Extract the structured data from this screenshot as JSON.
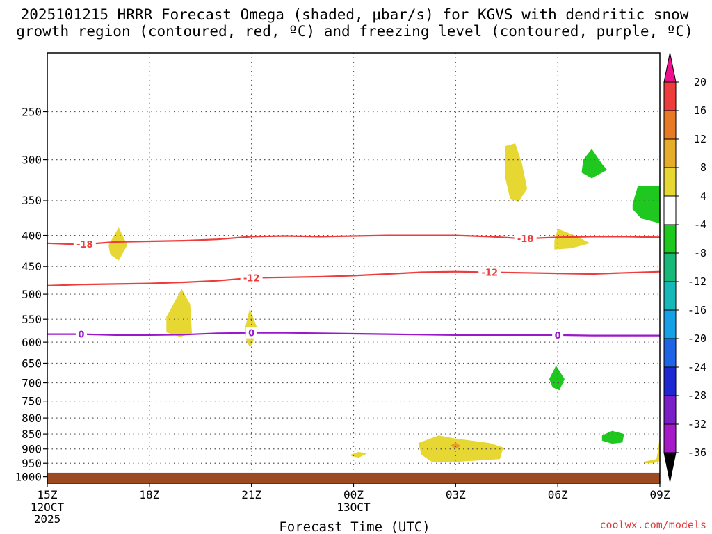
{
  "chart_data": {
    "type": "heatmap",
    "title_lines": [
      "2025101215 HRRR Forecast Omega (shaded, μbar/s) for KGVS with dendritic snow",
      "growth region (contoured, red, ºC) and freezing level (contoured, purple, ºC)"
    ],
    "xlabel": "Forecast Time (UTC)",
    "credit": "coolwx.com/models",
    "x_ticks": [
      {
        "hour": 0,
        "label": "15Z",
        "sub": [
          "12OCT",
          "2025"
        ]
      },
      {
        "hour": 3,
        "label": "18Z",
        "sub": []
      },
      {
        "hour": 6,
        "label": "21Z",
        "sub": []
      },
      {
        "hour": 9,
        "label": "00Z",
        "sub": [
          "13OCT"
        ]
      },
      {
        "hour": 12,
        "label": "03Z",
        "sub": []
      },
      {
        "hour": 15,
        "label": "06Z",
        "sub": []
      },
      {
        "hour": 18,
        "label": "09Z",
        "sub": []
      }
    ],
    "x_range_hours": [
      0,
      18
    ],
    "y_range_hpa": [
      200,
      1025
    ],
    "y_ticks": [
      250,
      300,
      350,
      400,
      450,
      500,
      550,
      600,
      650,
      700,
      750,
      800,
      850,
      900,
      950,
      1000
    ],
    "ground": {
      "top_hpa": 985,
      "color": "#9b4a22"
    },
    "contours": [
      {
        "name": "dgz-minus18",
        "value": -18,
        "label": "-18",
        "color": "#ee3b3b",
        "points": [
          [
            0,
            412
          ],
          [
            1,
            414
          ],
          [
            2,
            410
          ],
          [
            3,
            409
          ],
          [
            4,
            408
          ],
          [
            5,
            406
          ],
          [
            6,
            402
          ],
          [
            7,
            401
          ],
          [
            8,
            402
          ],
          [
            9,
            401
          ],
          [
            10,
            400
          ],
          [
            11,
            400
          ],
          [
            12,
            400
          ],
          [
            13,
            402
          ],
          [
            14,
            405
          ],
          [
            15,
            403
          ],
          [
            16,
            402
          ],
          [
            17,
            402
          ],
          [
            18,
            403
          ]
        ],
        "label_hours": [
          1.1,
          14.05
        ]
      },
      {
        "name": "dgz-minus12",
        "value": -12,
        "label": "-12",
        "color": "#ee3b3b",
        "points": [
          [
            0,
            484
          ],
          [
            1,
            482
          ],
          [
            2,
            481
          ],
          [
            3,
            480
          ],
          [
            4,
            478
          ],
          [
            5,
            475
          ],
          [
            6,
            470
          ],
          [
            7,
            469
          ],
          [
            8,
            468
          ],
          [
            9,
            466
          ],
          [
            10,
            463
          ],
          [
            11,
            460
          ],
          [
            12,
            459
          ],
          [
            13,
            460
          ],
          [
            14,
            461
          ],
          [
            15,
            462
          ],
          [
            16,
            463
          ],
          [
            17,
            461
          ],
          [
            18,
            459
          ]
        ],
        "label_hours": [
          6.0,
          13.0
        ]
      },
      {
        "name": "freezing-level",
        "value": 0,
        "label": "0",
        "color": "#9a18c8",
        "points": [
          [
            0,
            582
          ],
          [
            1,
            582
          ],
          [
            2,
            584
          ],
          [
            3,
            584
          ],
          [
            4,
            583
          ],
          [
            5,
            580
          ],
          [
            6,
            579
          ],
          [
            7,
            579
          ],
          [
            8,
            580
          ],
          [
            9,
            581
          ],
          [
            10,
            582
          ],
          [
            11,
            583
          ],
          [
            12,
            584
          ],
          [
            13,
            584
          ],
          [
            14,
            584
          ],
          [
            15,
            584
          ],
          [
            16,
            585
          ],
          [
            17,
            585
          ],
          [
            18,
            585
          ]
        ],
        "label_hours": [
          1.0,
          6.0,
          15.0
        ]
      }
    ],
    "regions": [
      {
        "name": "omega-blob-upper-yellow",
        "range": "4 to 8",
        "color": "#e6d733",
        "points": [
          [
            13.45,
            285
          ],
          [
            13.75,
            282
          ],
          [
            13.95,
            305
          ],
          [
            14.1,
            335
          ],
          [
            13.85,
            352
          ],
          [
            13.6,
            348
          ],
          [
            13.45,
            320
          ]
        ]
      },
      {
        "name": "omega-blob-upper-green",
        "range": "-4 to -8",
        "color": "#1ec81e",
        "points": [
          [
            15.75,
            300
          ],
          [
            16.0,
            288
          ],
          [
            16.3,
            305
          ],
          [
            16.45,
            312
          ],
          [
            16.0,
            322
          ],
          [
            15.7,
            315
          ]
        ]
      },
      {
        "name": "omega-blob-right-green",
        "range": "-4 to -8",
        "color": "#1ec81e",
        "points": [
          [
            17.2,
            355
          ],
          [
            17.35,
            332
          ],
          [
            18.0,
            332
          ],
          [
            18.0,
            382
          ],
          [
            17.45,
            375
          ],
          [
            17.2,
            362
          ]
        ]
      },
      {
        "name": "omega-blob-near-18-left",
        "range": "4 to 8",
        "color": "#e6d733",
        "points": [
          [
            1.8,
            415
          ],
          [
            2.1,
            388
          ],
          [
            2.35,
            415
          ],
          [
            2.1,
            440
          ],
          [
            1.85,
            430
          ]
        ]
      },
      {
        "name": "omega-blob-near-18-right",
        "range": "4 to 8",
        "color": "#e6d733",
        "points": [
          [
            14.9,
            408
          ],
          [
            15.0,
            390
          ],
          [
            15.5,
            400
          ],
          [
            15.95,
            412
          ],
          [
            15.4,
            420
          ],
          [
            14.9,
            422
          ]
        ]
      },
      {
        "name": "omega-blob-mid-left",
        "range": "4 to 8",
        "color": "#e6d733",
        "points": [
          [
            3.5,
            545
          ],
          [
            3.95,
            490
          ],
          [
            4.2,
            520
          ],
          [
            4.25,
            580
          ],
          [
            3.9,
            588
          ],
          [
            3.5,
            578
          ]
        ]
      },
      {
        "name": "omega-blob-mid-21z",
        "range": "4 to 8",
        "color": "#e6d733",
        "points": [
          [
            5.8,
            572
          ],
          [
            5.95,
            528
          ],
          [
            6.15,
            565
          ],
          [
            6.05,
            600
          ],
          [
            5.95,
            612
          ],
          [
            5.85,
            595
          ]
        ]
      },
      {
        "name": "omega-blob-low-green",
        "range": "-4 to -8",
        "color": "#1ec81e",
        "points": [
          [
            14.75,
            690
          ],
          [
            14.95,
            656
          ],
          [
            15.2,
            690
          ],
          [
            15.05,
            720
          ],
          [
            14.85,
            712
          ]
        ]
      },
      {
        "name": "omega-blob-lower-green",
        "range": "-4 to -8",
        "color": "#1ec81e",
        "points": [
          [
            16.3,
            855
          ],
          [
            16.6,
            840
          ],
          [
            16.95,
            850
          ],
          [
            16.9,
            878
          ],
          [
            16.6,
            882
          ],
          [
            16.3,
            872
          ]
        ]
      },
      {
        "name": "omega-blob-lower-yellow-left",
        "range": "4 to 8",
        "color": "#e6d733",
        "points": [
          [
            8.9,
            920
          ],
          [
            9.15,
            910
          ],
          [
            9.4,
            915
          ],
          [
            9.15,
            930
          ],
          [
            8.95,
            925
          ]
        ]
      },
      {
        "name": "omega-blob-lower-yellow-main",
        "range": "4 to 8",
        "color": "#e6d733",
        "points": [
          [
            10.9,
            880
          ],
          [
            11.5,
            855
          ],
          [
            12.0,
            865
          ],
          [
            13.0,
            880
          ],
          [
            13.4,
            895
          ],
          [
            13.3,
            935
          ],
          [
            12.0,
            945
          ],
          [
            11.3,
            945
          ],
          [
            11.0,
            920
          ]
        ]
      },
      {
        "name": "omega-blob-lower-yellow-core",
        "range": "8 to 12",
        "color": "#e99b2b",
        "points": [
          [
            11.85,
            888
          ],
          [
            12.0,
            878
          ],
          [
            12.15,
            890
          ],
          [
            12.0,
            900
          ]
        ]
      },
      {
        "name": "omega-blob-lower-yellow-right",
        "range": "4 to 8",
        "color": "#e6d733",
        "points": [
          [
            17.5,
            945
          ],
          [
            17.9,
            935
          ],
          [
            17.95,
            900
          ],
          [
            18.0,
            860
          ],
          [
            18.0,
            942
          ],
          [
            17.8,
            950
          ],
          [
            17.55,
            950
          ]
        ]
      }
    ],
    "colorbar": {
      "labels": [
        "20",
        "16",
        "12",
        "8",
        "4",
        "-4",
        "-8",
        "-12",
        "-16",
        "-20",
        "-24",
        "-28",
        "-32",
        "-36"
      ],
      "colors": [
        "#ee0e8e",
        "#ee3b3b",
        "#e97a25",
        "#e6ad2a",
        "#e6d733",
        "#ffffff",
        "#1ec81e",
        "#18b878",
        "#16b8b8",
        "#16a0e6",
        "#1e64e6",
        "#1e28d2",
        "#7a1ec8",
        "#a519c8",
        "#a6a6a6",
        "#000000"
      ]
    }
  }
}
